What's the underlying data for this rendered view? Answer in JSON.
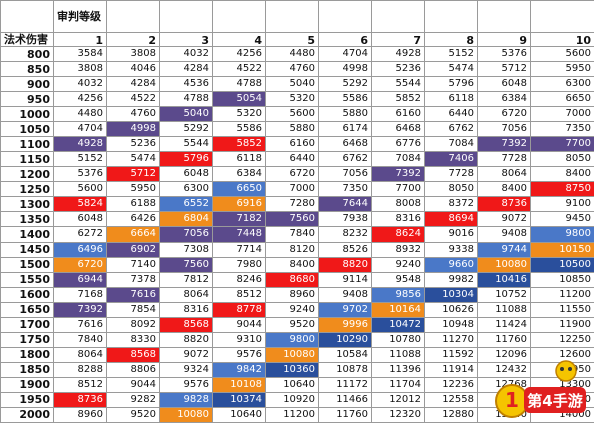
{
  "header": {
    "title_top": "审判等级",
    "title_left": "法术伤害",
    "levels": [
      "1",
      "2",
      "3",
      "4",
      "5",
      "6",
      "7",
      "8",
      "9",
      "10"
    ]
  },
  "colors": {
    "purple": "#5b4a8c",
    "red": "#f01818",
    "blue": "#4a78c8",
    "orange": "#f08c1c",
    "darkblue": "#2a4f9c",
    "gold": "#e8a020"
  },
  "rows": [
    {
      "dmg": "800",
      "vals": [
        "3584",
        "3808",
        "4032",
        "4256",
        "4480",
        "4704",
        "4928",
        "5152",
        "5376",
        "5600"
      ],
      "hl": {}
    },
    {
      "dmg": "850",
      "vals": [
        "3808",
        "4046",
        "4284",
        "4522",
        "4760",
        "4998",
        "5236",
        "5474",
        "5712",
        "5950"
      ],
      "hl": {}
    },
    {
      "dmg": "900",
      "vals": [
        "4032",
        "4284",
        "4536",
        "4788",
        "5040",
        "5292",
        "5544",
        "5796",
        "6048",
        "6300"
      ],
      "hl": {}
    },
    {
      "dmg": "950",
      "vals": [
        "4256",
        "4522",
        "4788",
        "5054",
        "5320",
        "5586",
        "5852",
        "6118",
        "6384",
        "6650"
      ],
      "hl": {
        "3": "purple"
      }
    },
    {
      "dmg": "1000",
      "vals": [
        "4480",
        "4760",
        "5040",
        "5320",
        "5600",
        "5880",
        "6160",
        "6440",
        "6720",
        "7000"
      ],
      "hl": {
        "2": "purple"
      }
    },
    {
      "dmg": "1050",
      "vals": [
        "4704",
        "4998",
        "5292",
        "5586",
        "5880",
        "6174",
        "6468",
        "6762",
        "7056",
        "7350"
      ],
      "hl": {
        "1": "purple"
      }
    },
    {
      "dmg": "1100",
      "vals": [
        "4928",
        "5236",
        "5544",
        "5852",
        "6160",
        "6468",
        "6776",
        "7084",
        "7392",
        "7700"
      ],
      "hl": {
        "0": "purple",
        "3": "red",
        "8": "purple",
        "9": "purple"
      }
    },
    {
      "dmg": "1150",
      "vals": [
        "5152",
        "5474",
        "5796",
        "6118",
        "6440",
        "6762",
        "7084",
        "7406",
        "7728",
        "8050"
      ],
      "hl": {
        "2": "red",
        "7": "purple"
      }
    },
    {
      "dmg": "1200",
      "vals": [
        "5376",
        "5712",
        "6048",
        "6384",
        "6720",
        "7056",
        "7392",
        "7728",
        "8064",
        "8400"
      ],
      "hl": {
        "1": "red",
        "6": "purple"
      }
    },
    {
      "dmg": "1250",
      "vals": [
        "5600",
        "5950",
        "6300",
        "6650",
        "7000",
        "7350",
        "7700",
        "8050",
        "8400",
        "8750"
      ],
      "hl": {
        "3": "blue",
        "9": "red"
      }
    },
    {
      "dmg": "1300",
      "vals": [
        "5824",
        "6188",
        "6552",
        "6916",
        "7280",
        "7644",
        "8008",
        "8372",
        "8736",
        "9100"
      ],
      "hl": {
        "0": "red",
        "2": "blue",
        "3": "orange",
        "5": "purple",
        "8": "red"
      }
    },
    {
      "dmg": "1350",
      "vals": [
        "6048",
        "6426",
        "6804",
        "7182",
        "7560",
        "7938",
        "8316",
        "8694",
        "9072",
        "9450"
      ],
      "hl": {
        "2": "orange",
        "3": "purple",
        "4": "purple",
        "7": "red"
      }
    },
    {
      "dmg": "1400",
      "vals": [
        "6272",
        "6664",
        "7056",
        "7448",
        "7840",
        "8232",
        "8624",
        "9016",
        "9408",
        "9800"
      ],
      "hl": {
        "1": "orange",
        "2": "purple",
        "3": "purple",
        "6": "red",
        "9": "blue"
      }
    },
    {
      "dmg": "1450",
      "vals": [
        "6496",
        "6902",
        "7308",
        "7714",
        "8120",
        "8526",
        "8932",
        "9338",
        "9744",
        "10150"
      ],
      "hl": {
        "0": "blue",
        "1": "purple",
        "8": "blue",
        "9": "orange"
      }
    },
    {
      "dmg": "1500",
      "vals": [
        "6720",
        "7140",
        "7560",
        "7980",
        "8400",
        "8820",
        "9240",
        "9660",
        "10080",
        "10500"
      ],
      "hl": {
        "0": "orange",
        "2": "purple",
        "5": "red",
        "7": "blue",
        "8": "orange",
        "9": "darkblue"
      }
    },
    {
      "dmg": "1550",
      "vals": [
        "6944",
        "7378",
        "7812",
        "8246",
        "8680",
        "9114",
        "9548",
        "9982",
        "10416",
        "10850"
      ],
      "hl": {
        "0": "purple",
        "4": "red",
        "8": "darkblue"
      }
    },
    {
      "dmg": "1600",
      "vals": [
        "7168",
        "7616",
        "8064",
        "8512",
        "8960",
        "9408",
        "9856",
        "10304",
        "10752",
        "11200"
      ],
      "hl": {
        "1": "purple",
        "6": "blue",
        "7": "darkblue"
      }
    },
    {
      "dmg": "1650",
      "vals": [
        "7392",
        "7854",
        "8316",
        "8778",
        "9240",
        "9702",
        "10164",
        "10626",
        "11088",
        "11550"
      ],
      "hl": {
        "0": "purple",
        "3": "red",
        "5": "blue",
        "6": "orange"
      }
    },
    {
      "dmg": "1700",
      "vals": [
        "7616",
        "8092",
        "8568",
        "9044",
        "9520",
        "9996",
        "10472",
        "10948",
        "11424",
        "11900"
      ],
      "hl": {
        "2": "red",
        "5": "orange",
        "6": "darkblue"
      }
    },
    {
      "dmg": "1750",
      "vals": [
        "7840",
        "8330",
        "8820",
        "9310",
        "9800",
        "10290",
        "10780",
        "11270",
        "11760",
        "12250"
      ],
      "hl": {
        "4": "blue",
        "5": "darkblue"
      }
    },
    {
      "dmg": "1800",
      "vals": [
        "8064",
        "8568",
        "9072",
        "9576",
        "10080",
        "10584",
        "11088",
        "11592",
        "12096",
        "12600"
      ],
      "hl": {
        "1": "red",
        "4": "orange"
      }
    },
    {
      "dmg": "1850",
      "vals": [
        "8288",
        "8806",
        "9324",
        "9842",
        "10360",
        "10878",
        "11396",
        "11914",
        "12432",
        "12950"
      ],
      "hl": {
        "3": "blue",
        "4": "darkblue"
      }
    },
    {
      "dmg": "1900",
      "vals": [
        "8512",
        "9044",
        "9576",
        "10108",
        "10640",
        "11172",
        "11704",
        "12236",
        "12768",
        "13300"
      ],
      "hl": {
        "3": "orange"
      }
    },
    {
      "dmg": "1950",
      "vals": [
        "8736",
        "9282",
        "9828",
        "10374",
        "10920",
        "11466",
        "12012",
        "12558",
        "13104",
        "13650"
      ],
      "hl": {
        "0": "red",
        "2": "blue",
        "3": "darkblue"
      }
    },
    {
      "dmg": "2000",
      "vals": [
        "8960",
        "9520",
        "10080",
        "10640",
        "11200",
        "11760",
        "12320",
        "12880",
        "13440",
        "14000"
      ],
      "hl": {
        "2": "orange"
      }
    }
  ],
  "watermark": {
    "text": "第4手游"
  }
}
